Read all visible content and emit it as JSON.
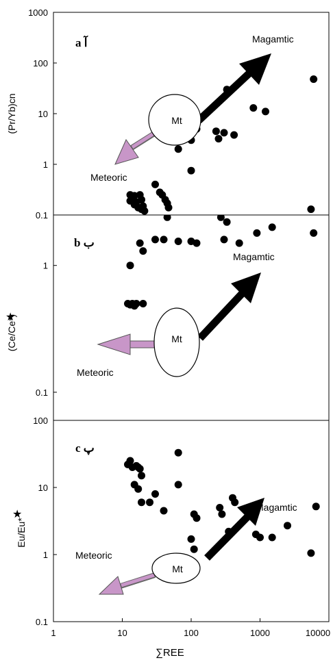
{
  "x_axis": {
    "label": "∑REE",
    "ticks": [
      1,
      10,
      100,
      1000,
      10000
    ],
    "tick_labels": [
      "1",
      "10",
      "100",
      "1000",
      "10000"
    ],
    "scale": "log",
    "range": [
      1,
      10000
    ]
  },
  "colors": {
    "points": "#000000",
    "magmatic_arrow": "#000000",
    "meteoric_arrow": "#c896c8",
    "arrow_outline": "#555555"
  },
  "chart_data": [
    {
      "type": "scatter",
      "panel_label": "a  آ",
      "ylabel": "(Pr/Yb)cn",
      "yscale": "log",
      "ylim": [
        0.1,
        1000
      ],
      "yticks": [
        "0.1",
        "1",
        "10",
        "100",
        "1000"
      ],
      "annotations": {
        "up_arrow": "Magamtic",
        "down_arrow": "Meteoric",
        "ellipse": "Mt"
      },
      "x": [
        6000,
        330,
        800,
        1200,
        120,
        100,
        65,
        230,
        250,
        300,
        420,
        100,
        30,
        35,
        38,
        42,
        45,
        47,
        13,
        14,
        15,
        16,
        18,
        19,
        20,
        13,
        15,
        17,
        19,
        21,
        5500
      ],
      "y": [
        48,
        30,
        13,
        11,
        5,
        3,
        2,
        4.5,
        3.2,
        4.2,
        3.8,
        0.75,
        0.4,
        0.28,
        0.25,
        0.2,
        0.17,
        0.14,
        0.25,
        0.22,
        0.24,
        0.18,
        0.25,
        0.2,
        0.15,
        0.19,
        0.16,
        0.14,
        0.13,
        0.12,
        0.13
      ]
    },
    {
      "type": "scatter",
      "panel_label": "b  ب",
      "ylabel": "(Ce/Ce*)",
      "yscale": "log",
      "ylim": [
        0.06,
        2.5
      ],
      "yticks": [
        "0.1",
        "1"
      ],
      "annotations": {
        "up_arrow": "Magamtic",
        "down_arrow": "Meteoric",
        "ellipse": "Mt"
      },
      "x": [
        270,
        330,
        900,
        1500,
        6000,
        13,
        18,
        20,
        30,
        40,
        65,
        100,
        120,
        300,
        500,
        12,
        13,
        14,
        15,
        16,
        20,
        45
      ],
      "y": [
        2.4,
        2.2,
        1.8,
        2.0,
        1.8,
        1.0,
        1.5,
        1.3,
        1.6,
        1.6,
        1.55,
        1.55,
        1.5,
        1.6,
        1.5,
        0.5,
        0.49,
        0.5,
        0.48,
        0.5,
        0.5,
        2.4
      ]
    },
    {
      "type": "scatter",
      "panel_label": "c  پ",
      "ylabel": "Eu/Eu*",
      "yscale": "log",
      "ylim": [
        0.1,
        100
      ],
      "yticks": [
        "0.1",
        "1",
        "10",
        "100"
      ],
      "annotations": {
        "up_arrow": "Magamtic",
        "down_arrow": "Meteoric",
        "ellipse": "Mt"
      },
      "x": [
        65,
        13,
        12,
        14,
        16,
        17,
        18,
        19,
        15,
        17,
        19,
        25,
        30,
        40,
        65,
        110,
        120,
        260,
        280,
        400,
        430,
        350,
        870,
        1000,
        1500,
        2500,
        6500,
        5500,
        100,
        110
      ],
      "y": [
        33,
        25,
        22,
        20,
        21,
        20,
        19,
        15,
        11,
        9.5,
        6,
        6,
        8,
        4.5,
        11,
        4,
        3.5,
        5,
        4,
        7,
        6,
        2.2,
        2,
        1.8,
        1.8,
        2.7,
        5.2,
        1.05,
        1.7,
        1.2
      ]
    }
  ]
}
